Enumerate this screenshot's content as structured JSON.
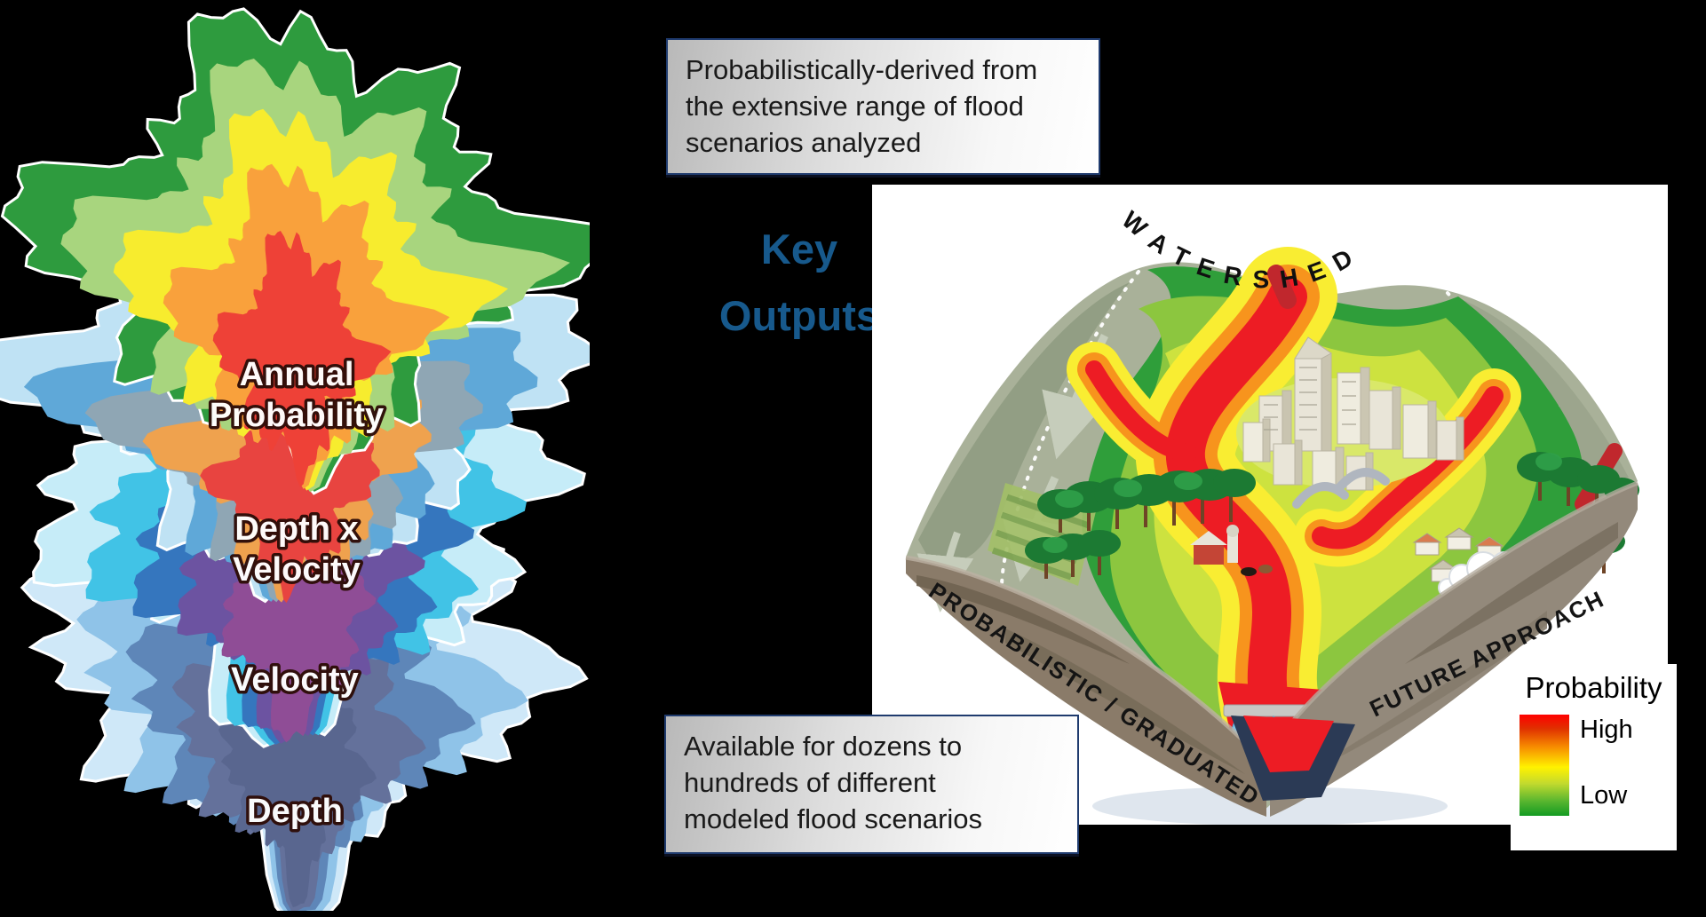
{
  "page": {
    "background": "#000000"
  },
  "callouts": {
    "top_note_lines": [
      "Probabilistically-derived from",
      "the extensive range of flood",
      "scenarios analyzed"
    ],
    "bottom_note_lines": [
      "Available for dozens to",
      "hundreds of different",
      "modeled flood scenarios"
    ],
    "key_outputs_lines": [
      "Key",
      "Outputs"
    ],
    "accent_blue": "#17598c"
  },
  "stack": {
    "layers": [
      {
        "name": "annual-probability",
        "label_lines": [
          "Annual",
          "Probability"
        ],
        "palette": [
          "#2E9B3E",
          "#A8D57E",
          "#F7EC2E",
          "#F9A13C",
          "#EE4137"
        ]
      },
      {
        "name": "depth-x-velocity",
        "label_lines": [
          "Depth x",
          "Velocity"
        ],
        "palette": [
          "#BFE2F4",
          "#5FA8D8",
          "#8FA6B4",
          "#EFA24E",
          "#E84440"
        ]
      },
      {
        "name": "velocity",
        "label_lines": [
          "Velocity"
        ],
        "palette": [
          "#C6ECF8",
          "#41C3E6",
          "#3576BE",
          "#6C53A1",
          "#8F4D96"
        ]
      },
      {
        "name": "depth",
        "label_lines": [
          "Depth"
        ],
        "palette": [
          "#CFE8F8",
          "#8FC3E8",
          "#5E86B8",
          "#64719B",
          "#59668F"
        ]
      }
    ]
  },
  "watershed": {
    "arc_title": "WATERSHED",
    "left_cliff_label": "PROBABILISTIC / GRADUATED",
    "right_cliff_label": "FUTURE APPROACH",
    "river_color": "#ED1C24",
    "hill_color": "#A9B199",
    "cliff_color": "#8A7B69"
  },
  "legend": {
    "title": "Probability",
    "high_label": "High",
    "low_label": "Low",
    "high_color": "#ff0000",
    "mid_color": "#fff200",
    "low_color": "#149b22"
  }
}
